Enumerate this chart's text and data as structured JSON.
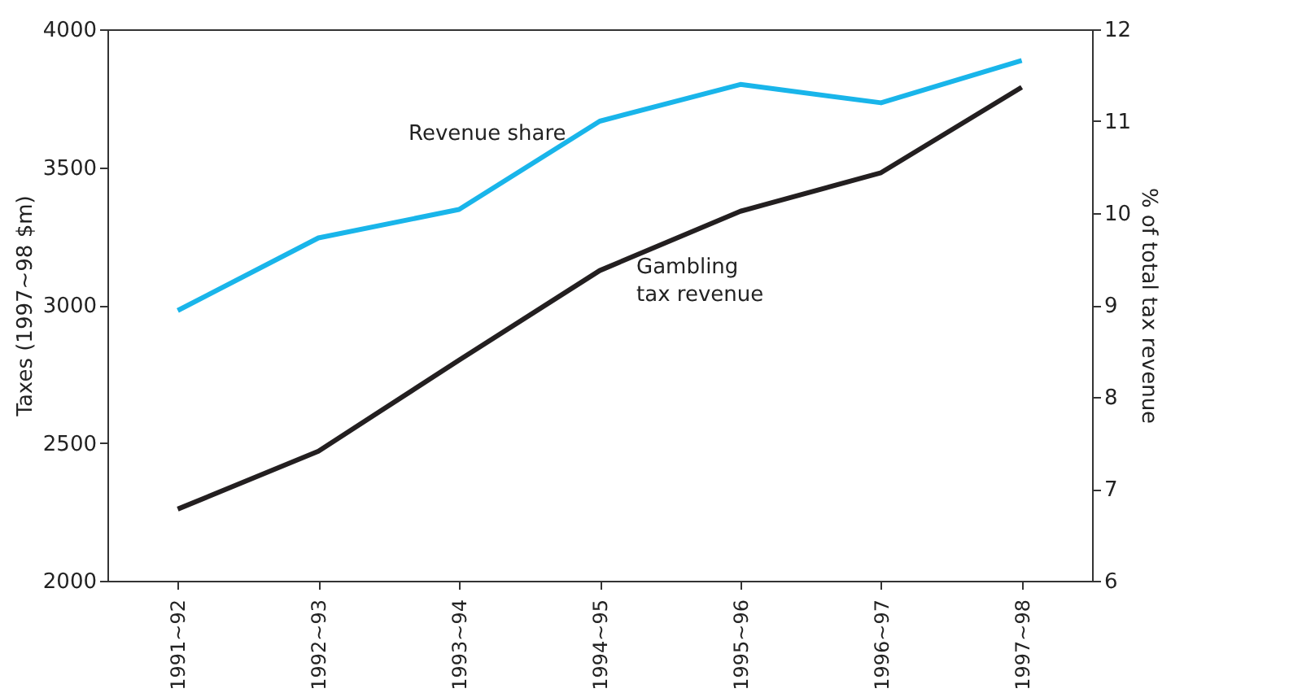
{
  "chart_data": {
    "type": "line",
    "ylabel": "Taxes (1997~98 $m)",
    "y2label": "% of total tax revenue",
    "categories": [
      "1991~92",
      "1992~93",
      "1993~94",
      "1994~95",
      "1995~96",
      "1996~97",
      "1997~98"
    ],
    "ylim": [
      2000,
      4000
    ],
    "yticks": [
      2000,
      2500,
      3000,
      3500,
      4000
    ],
    "y2lim": [
      6,
      12
    ],
    "y2ticks": [
      6,
      7,
      8,
      9,
      10,
      11,
      12
    ],
    "grid": false,
    "legend": false,
    "marker": "none",
    "line_style": "solid",
    "series": [
      {
        "name": "Revenue share",
        "color": "#19b5ea",
        "axis": "y2",
        "values": [
          8.94,
          9.73,
          10.04,
          11.0,
          11.4,
          11.2,
          11.66
        ]
      },
      {
        "name": "Gambling tax revenue",
        "color": "#231f20",
        "values": [
          2260,
          2470,
          2800,
          3125,
          3340,
          3480,
          3790
        ]
      }
    ]
  }
}
